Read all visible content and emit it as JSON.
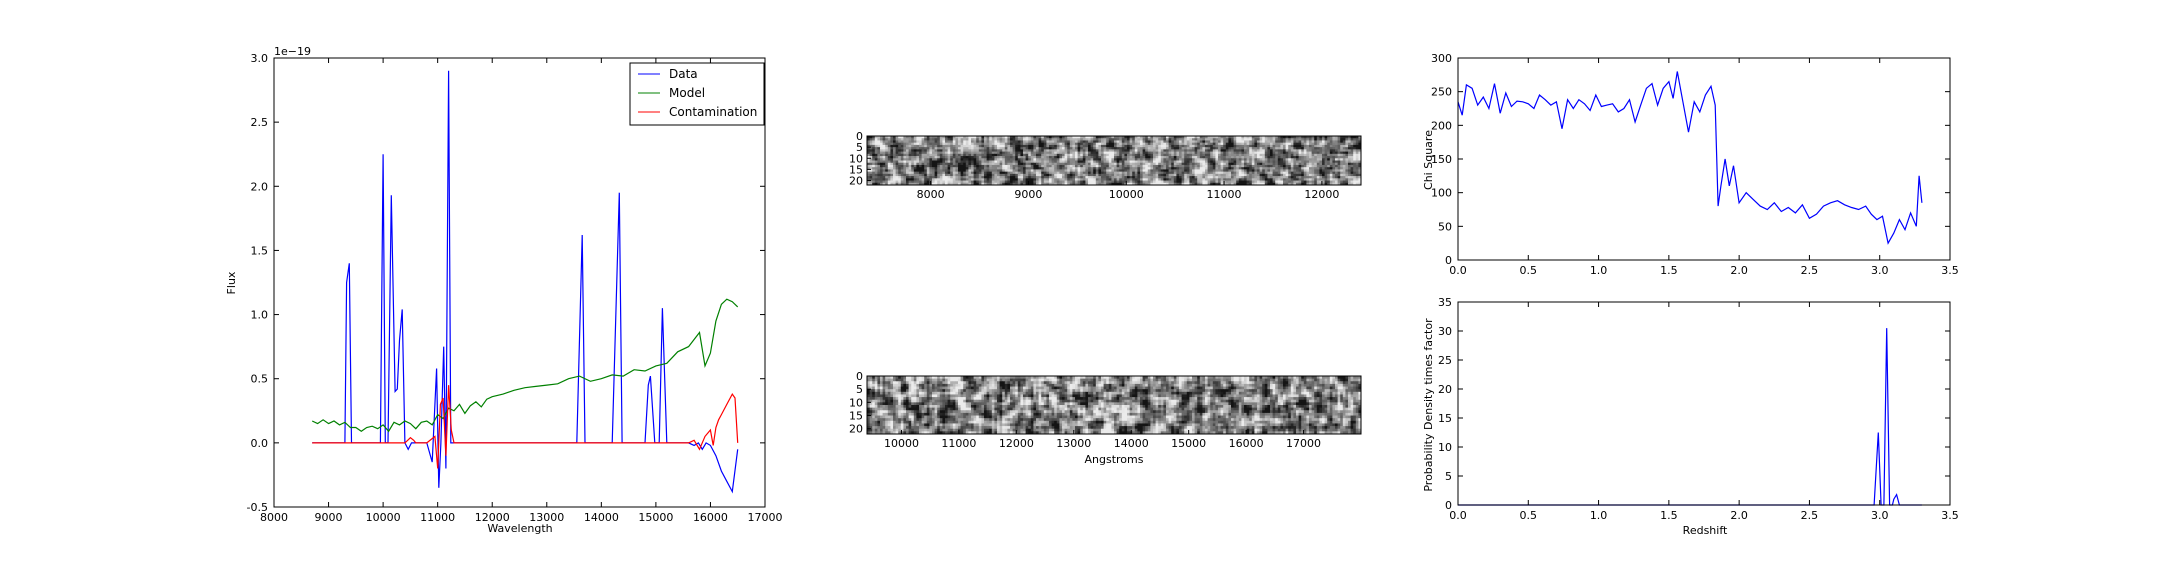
{
  "colors": {
    "data": "#0000ff",
    "model": "#008000",
    "contamination": "#ff0000",
    "frame": "#000000"
  },
  "chart_data": [
    {
      "id": "spectrum",
      "type": "line",
      "xlabel": "Wavelength",
      "ylabel": "Flux",
      "offset_text": "1e−19",
      "xlim": [
        8000,
        17000
      ],
      "ylim": [
        -0.5,
        3.0
      ],
      "xticks": [
        8000,
        9000,
        10000,
        11000,
        12000,
        13000,
        14000,
        15000,
        16000,
        17000
      ],
      "yticks": [
        -0.5,
        0.0,
        0.5,
        1.0,
        1.5,
        2.0,
        2.5,
        3.0
      ],
      "legend_placement": "top-right",
      "series": [
        {
          "name": "Data",
          "color": "#0000ff",
          "x": [
            8700,
            9200,
            9300,
            9330,
            9380,
            9420,
            9500,
            9950,
            10000,
            10040,
            10090,
            10150,
            10220,
            10260,
            10300,
            10350,
            10400,
            10460,
            10520,
            10560,
            10620,
            10700,
            10800,
            10900,
            10980,
            11020,
            11060,
            11110,
            11150,
            11200,
            11240,
            11280,
            11320,
            11360,
            11420,
            12000,
            13000,
            13550,
            13650,
            13700,
            13760,
            13850,
            14200,
            14330,
            14380,
            14450,
            14600,
            14800,
            14860,
            14900,
            14980,
            15060,
            15120,
            15200,
            15600,
            15700,
            15780,
            15850,
            15920,
            16000,
            16100,
            16200,
            16300,
            16400,
            16500
          ],
          "y": [
            0.0,
            0.0,
            0.0,
            1.25,
            1.4,
            0.0,
            0.0,
            0.0,
            2.25,
            0.0,
            0.0,
            1.93,
            0.4,
            0.42,
            0.8,
            1.04,
            0.0,
            -0.05,
            0.0,
            0.0,
            0.0,
            0.0,
            0.0,
            -0.15,
            0.58,
            -0.35,
            0.0,
            0.75,
            -0.2,
            2.9,
            0.0,
            0.0,
            0.0,
            0.0,
            0.0,
            0.0,
            0.0,
            0.0,
            1.62,
            0.0,
            0.0,
            0.0,
            0.0,
            1.95,
            0.0,
            0.0,
            0.0,
            0.0,
            0.45,
            0.52,
            0.0,
            0.0,
            1.05,
            0.0,
            0.0,
            -0.02,
            0.0,
            -0.05,
            0.0,
            -0.02,
            -0.1,
            -0.22,
            -0.3,
            -0.38,
            -0.05
          ]
        },
        {
          "name": "Model",
          "color": "#008000",
          "x": [
            8700,
            8800,
            8900,
            9000,
            9100,
            9200,
            9300,
            9400,
            9500,
            9600,
            9700,
            9800,
            9900,
            10000,
            10100,
            10200,
            10300,
            10400,
            10500,
            10600,
            10700,
            10800,
            10900,
            11000,
            11100,
            11200,
            11300,
            11400,
            11500,
            11600,
            11700,
            11800,
            11900,
            12000,
            12200,
            12400,
            12600,
            12800,
            13000,
            13200,
            13400,
            13600,
            13800,
            14000,
            14200,
            14400,
            14600,
            14800,
            15000,
            15200,
            15400,
            15600,
            15800,
            15900,
            16000,
            16100,
            16200,
            16300,
            16400,
            16500
          ],
          "y": [
            0.17,
            0.15,
            0.18,
            0.15,
            0.17,
            0.14,
            0.16,
            0.12,
            0.12,
            0.09,
            0.12,
            0.13,
            0.11,
            0.14,
            0.09,
            0.16,
            0.14,
            0.17,
            0.15,
            0.11,
            0.16,
            0.17,
            0.14,
            0.22,
            0.19,
            0.27,
            0.25,
            0.3,
            0.23,
            0.29,
            0.32,
            0.28,
            0.34,
            0.36,
            0.38,
            0.41,
            0.43,
            0.44,
            0.45,
            0.46,
            0.5,
            0.52,
            0.48,
            0.5,
            0.53,
            0.52,
            0.57,
            0.56,
            0.6,
            0.62,
            0.71,
            0.75,
            0.86,
            0.6,
            0.7,
            0.95,
            1.08,
            1.12,
            1.1,
            1.06
          ]
        },
        {
          "name": "Contamination",
          "color": "#ff0000",
          "x": [
            8700,
            10400,
            10450,
            10500,
            10560,
            10600,
            10800,
            10950,
            11000,
            11050,
            11100,
            11150,
            11200,
            11250,
            11300,
            11400,
            15600,
            15700,
            15800,
            15900,
            16000,
            16050,
            16100,
            16150,
            16200,
            16300,
            16400,
            16450,
            16500
          ],
          "y": [
            0.0,
            0.0,
            0.02,
            0.04,
            0.02,
            0.0,
            0.0,
            0.05,
            -0.2,
            0.3,
            0.35,
            -0.1,
            0.45,
            0.1,
            0.0,
            0.0,
            0.0,
            0.02,
            -0.05,
            0.05,
            0.1,
            -0.02,
            0.12,
            0.18,
            0.22,
            0.3,
            0.38,
            0.35,
            0.0
          ]
        }
      ]
    },
    {
      "id": "image1",
      "type": "heatmap",
      "xlim": [
        7350,
        12400
      ],
      "xticks": [
        8000,
        9000,
        10000,
        11000,
        12000
      ],
      "yticks": [
        0,
        5,
        10,
        15,
        20
      ],
      "ylim": [
        22,
        0
      ],
      "colormap": "gray"
    },
    {
      "id": "image2",
      "type": "heatmap",
      "xlabel": "Angstroms",
      "xlim": [
        9400,
        18000
      ],
      "xticks": [
        10000,
        11000,
        12000,
        13000,
        14000,
        15000,
        16000,
        17000
      ],
      "yticks": [
        0,
        5,
        10,
        15,
        20
      ],
      "ylim": [
        22,
        0
      ],
      "colormap": "gray"
    },
    {
      "id": "chisq",
      "type": "line",
      "ylabel": "Chi Square",
      "xlim": [
        0.0,
        3.5
      ],
      "ylim": [
        0,
        300
      ],
      "xticks": [
        0.0,
        0.5,
        1.0,
        1.5,
        2.0,
        2.5,
        3.0,
        3.5
      ],
      "yticks": [
        0,
        50,
        100,
        150,
        200,
        250,
        300
      ],
      "series": [
        {
          "color": "#0000ff",
          "x": [
            0.0,
            0.03,
            0.06,
            0.1,
            0.14,
            0.18,
            0.22,
            0.26,
            0.3,
            0.34,
            0.38,
            0.42,
            0.46,
            0.5,
            0.54,
            0.58,
            0.62,
            0.66,
            0.7,
            0.74,
            0.78,
            0.82,
            0.86,
            0.9,
            0.94,
            0.98,
            1.02,
            1.06,
            1.1,
            1.14,
            1.18,
            1.22,
            1.26,
            1.3,
            1.34,
            1.38,
            1.42,
            1.46,
            1.5,
            1.53,
            1.56,
            1.6,
            1.64,
            1.68,
            1.72,
            1.76,
            1.8,
            1.83,
            1.85,
            1.87,
            1.9,
            1.93,
            1.96,
            2.0,
            2.05,
            2.1,
            2.15,
            2.2,
            2.25,
            2.3,
            2.35,
            2.4,
            2.45,
            2.5,
            2.55,
            2.6,
            2.65,
            2.7,
            2.75,
            2.8,
            2.85,
            2.9,
            2.94,
            2.98,
            3.02,
            3.06,
            3.1,
            3.14,
            3.18,
            3.22,
            3.26,
            3.28,
            3.3
          ],
          "y": [
            235,
            215,
            260,
            255,
            230,
            242,
            225,
            262,
            218,
            248,
            228,
            236,
            235,
            232,
            225,
            245,
            238,
            230,
            235,
            195,
            238,
            225,
            238,
            232,
            222,
            245,
            228,
            230,
            232,
            220,
            225,
            238,
            205,
            230,
            255,
            262,
            230,
            255,
            265,
            240,
            280,
            235,
            190,
            235,
            220,
            245,
            258,
            230,
            80,
            110,
            150,
            110,
            140,
            85,
            100,
            90,
            80,
            75,
            85,
            72,
            78,
            70,
            82,
            62,
            68,
            80,
            85,
            88,
            82,
            78,
            75,
            80,
            68,
            60,
            65,
            25,
            40,
            60,
            45,
            70,
            50,
            125,
            85
          ]
        }
      ]
    },
    {
      "id": "pdf",
      "type": "line",
      "xlabel": "Redshift",
      "ylabel": "Probability Density times factor",
      "xlim": [
        0.0,
        3.5
      ],
      "ylim": [
        0,
        35
      ],
      "xticks": [
        0.0,
        0.5,
        1.0,
        1.5,
        2.0,
        2.5,
        3.0,
        3.5
      ],
      "yticks": [
        0,
        5,
        10,
        15,
        20,
        25,
        30,
        35
      ],
      "series": [
        {
          "color": "#0000ff",
          "x": [
            0.0,
            2.9,
            2.96,
            2.99,
            3.01,
            3.03,
            3.05,
            3.07,
            3.09,
            3.1,
            3.12,
            3.14,
            3.16,
            3.3
          ],
          "y": [
            0,
            0,
            0,
            12.5,
            0,
            0,
            30.5,
            0,
            0,
            1.0,
            1.8,
            0,
            0,
            0
          ]
        }
      ]
    }
  ]
}
